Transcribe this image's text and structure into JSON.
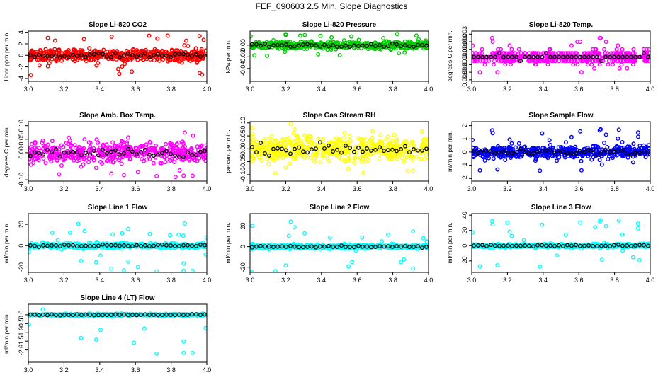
{
  "figure_title": "FEF_090603  2.5 Min. Slope Diagnostics",
  "colors": {
    "overlay": "#000000",
    "frame": "#000000"
  },
  "chart_data": [
    {
      "type": "scatter",
      "id": "co2",
      "title": "Slope Li-820 CO2",
      "ylabel": "Licor ppm per min.",
      "color": "#ff0000",
      "xlim": [
        3.0,
        4.0
      ],
      "ylim": [
        -4.5,
        4.2
      ],
      "xticks": [
        3.0,
        3.2,
        3.4,
        3.6,
        3.8,
        4.0
      ],
      "xtick_labels": [
        "3.0",
        "3.2",
        "3.4",
        "3.6",
        "3.8",
        "4.0"
      ],
      "yticks": [
        -4,
        -2,
        0,
        2,
        4
      ],
      "ytick_labels": [
        "-4",
        "-2",
        "0",
        "2",
        "4"
      ],
      "spread": 1.0,
      "outlier": 3.5
    },
    {
      "type": "scatter",
      "id": "pressure",
      "title": "Slope Li-820 Pressure",
      "ylabel": "kPa per min.",
      "color": "#00cc00",
      "xlim": [
        3.0,
        4.0
      ],
      "ylim": [
        -0.062,
        0.024
      ],
      "xticks": [
        3.0,
        3.2,
        3.4,
        3.6,
        3.8,
        4.0
      ],
      "xtick_labels": [
        "3.0",
        "3.2",
        "3.4",
        "3.6",
        "3.8",
        "4.0"
      ],
      "yticks": [
        -0.04,
        -0.02,
        0.0
      ],
      "ytick_labels": [
        "-0.04",
        "-0.02",
        "0.00"
      ],
      "spread": 0.006,
      "outlier": 0.02
    },
    {
      "type": "scatter",
      "id": "temp",
      "title": "Slope Li-820 Temp.",
      "ylabel": "degrees C per min.",
      "color": "#ff00ff",
      "xlim": [
        3.0,
        4.0
      ],
      "ylim": [
        -0.0032,
        0.0034
      ],
      "xticks": [
        3.0,
        3.2,
        3.4,
        3.6,
        3.8,
        4.0
      ],
      "xtick_labels": [
        "3.0",
        "3.2",
        "3.4",
        "3.6",
        "3.8",
        "4.0"
      ],
      "yticks": [
        -0.003,
        -0.002,
        -0.001,
        0.0,
        0.001,
        0.002,
        0.003
      ],
      "ytick_labels": [
        "-0.003",
        "-0.002",
        "-0.001",
        "0.000",
        "0.001",
        "0.002",
        "0.003"
      ],
      "spread": 0.0008,
      "outlier": 0.0025,
      "quantum": 0.0005
    },
    {
      "type": "scatter",
      "id": "amb",
      "title": "Slope Amb. Box Temp.",
      "ylabel": "degrees C per min.",
      "color": "#ff00ff",
      "xlim": [
        3.0,
        4.0
      ],
      "ylim": [
        -0.105,
        0.115
      ],
      "xticks": [
        3.0,
        3.2,
        3.4,
        3.6,
        3.8,
        4.0
      ],
      "xtick_labels": [
        "3.0",
        "3.2",
        "3.4",
        "3.6",
        "3.8",
        "4.0"
      ],
      "yticks": [
        -0.1,
        0.0,
        0.05,
        0.1
      ],
      "ytick_labels": [
        "-0.10",
        "0.00",
        "0.05",
        "0.10"
      ],
      "spread": 0.035,
      "outlier": 0.09
    },
    {
      "type": "scatter",
      "id": "rh",
      "title": "Slope Gas Stream RH",
      "ylabel": "percent per min.",
      "color": "#ffff00",
      "xlim": [
        3.0,
        4.0
      ],
      "ylim": [
        -0.125,
        0.105
      ],
      "xticks": [
        3.0,
        3.2,
        3.4,
        3.6,
        3.8,
        4.0
      ],
      "xtick_labels": [
        "3.0",
        "3.2",
        "3.4",
        "3.6",
        "3.8",
        "4.0"
      ],
      "yticks": [
        -0.1,
        -0.05,
        0.0,
        0.05,
        0.1
      ],
      "ytick_labels": [
        "-0.10",
        "-0.05",
        "0.00",
        "0.05",
        "0.10"
      ],
      "spread": 0.045,
      "outlier": 0.1
    },
    {
      "type": "scatter",
      "id": "sflow",
      "title": "Slope Sample Flow",
      "ylabel": "ml/min per min.",
      "color": "#0000ff",
      "xlim": [
        3.0,
        4.0
      ],
      "ylim": [
        -2.2,
        2.3
      ],
      "xticks": [
        3.0,
        3.2,
        3.4,
        3.6,
        3.8,
        4.0
      ],
      "xtick_labels": [
        "3.0",
        "3.2",
        "3.4",
        "3.6",
        "3.8",
        "4.0"
      ],
      "yticks": [
        -2,
        -1,
        0,
        1,
        2
      ],
      "ytick_labels": [
        "-2",
        "-1",
        "0",
        "1",
        "2"
      ],
      "spread": 0.45,
      "outlier": 1.8
    },
    {
      "type": "scatter",
      "id": "line1",
      "title": "Slope Line 1 Flow",
      "ylabel": "ml/min per min.",
      "color": "#00ffff",
      "xlim": [
        3.0,
        4.0
      ],
      "ylim": [
        -25,
        30
      ],
      "xticks": [
        3.0,
        3.2,
        3.4,
        3.6,
        3.8,
        4.0
      ],
      "xtick_labels": [
        "3.0",
        "3.2",
        "3.4",
        "3.6",
        "3.8",
        "4.0"
      ],
      "yticks": [
        -20,
        0,
        20
      ],
      "ytick_labels": [
        "-20",
        "0",
        "20"
      ],
      "spread": 2.5,
      "outlier": 25
    },
    {
      "type": "scatter",
      "id": "line2",
      "title": "Slope Line 2 Flow",
      "ylabel": "ml/min per min.",
      "color": "#00ffff",
      "xlim": [
        3.0,
        4.0
      ],
      "ylim": [
        -25,
        32
      ],
      "xticks": [
        3.0,
        3.2,
        3.4,
        3.6,
        3.8,
        4.0
      ],
      "xtick_labels": [
        "3.0",
        "3.2",
        "3.4",
        "3.6",
        "3.8",
        "4.0"
      ],
      "yticks": [
        -20,
        0,
        20
      ],
      "ytick_labels": [
        "-20",
        "0",
        "20"
      ],
      "spread": 2.0,
      "outlier": 25
    },
    {
      "type": "scatter",
      "id": "line3",
      "title": "Slope Line 3 Flow",
      "ylabel": "ml/min per min.",
      "color": "#00ffff",
      "xlim": [
        3.0,
        4.0
      ],
      "ylim": [
        -35,
        42
      ],
      "xticks": [
        3.0,
        3.2,
        3.4,
        3.6,
        3.8,
        4.0
      ],
      "xtick_labels": [
        "3.0",
        "3.2",
        "3.4",
        "3.6",
        "3.8",
        "4.0"
      ],
      "yticks": [
        -20,
        0,
        20,
        40
      ],
      "ytick_labels": [
        "-20",
        "0",
        "20",
        "40"
      ],
      "spread": 2.5,
      "outlier": 35
    },
    {
      "type": "scatter",
      "id": "line4",
      "title": "Slope Line 4 (LT) Flow",
      "ylabel": "ml/min per min.",
      "color": "#00ffff",
      "xlim": [
        3.0,
        4.0
      ],
      "ylim": [
        -2.7,
        0.6
      ],
      "xticks": [
        3.0,
        3.2,
        3.4,
        3.6,
        3.8,
        4.0
      ],
      "xtick_labels": [
        "3.0",
        "3.2",
        "3.4",
        "3.6",
        "3.8",
        "4.0"
      ],
      "yticks": [
        -2.0,
        -1.5,
        -1.0,
        -0.5,
        0.0
      ],
      "ytick_labels": [
        "-2.0",
        "-1.5",
        "-1.0",
        "-0.5",
        "0.0"
      ],
      "spread": 0.06,
      "outlier": 2.3
    }
  ]
}
